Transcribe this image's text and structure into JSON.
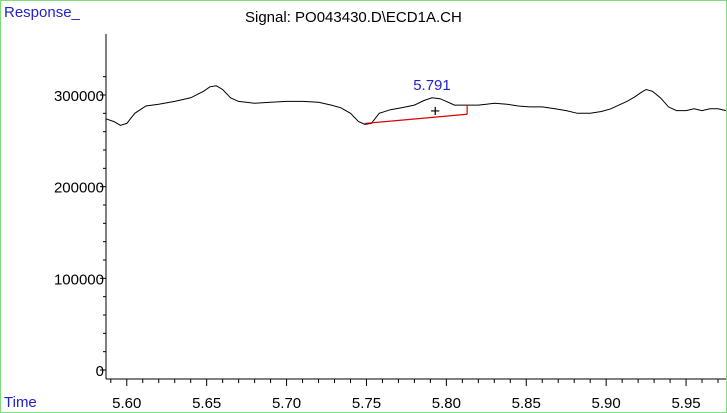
{
  "chart_data": {
    "type": "line",
    "title": "Signal: PO043430.D\\ECD1A.CH",
    "ylabel": "Response_",
    "xlabel": "Time",
    "xlim": [
      5.587,
      5.975
    ],
    "ylim": [
      -6000,
      320000
    ],
    "x_ticks": [
      5.6,
      5.65,
      5.7,
      5.75,
      5.8,
      5.85,
      5.9,
      5.95
    ],
    "x_tick_labels": [
      "5.60",
      "5.65",
      "5.70",
      "5.75",
      "5.80",
      "5.85",
      "5.90",
      "5.95"
    ],
    "x_minor_step": 0.01,
    "y_ticks": [
      0,
      100000,
      200000,
      300000
    ],
    "y_tick_labels": [
      "0",
      "100000",
      "200000",
      "300000"
    ],
    "y_minor_step": 20000,
    "grid": false,
    "series": [
      {
        "color": "#000000",
        "points": [
          [
            5.587,
            274000
          ],
          [
            5.592,
            271000
          ],
          [
            5.596,
            267000
          ],
          [
            5.6,
            269000
          ],
          [
            5.605,
            280000
          ],
          [
            5.612,
            288000
          ],
          [
            5.62,
            290000
          ],
          [
            5.63,
            293000
          ],
          [
            5.64,
            297000
          ],
          [
            5.648,
            304000
          ],
          [
            5.652,
            309000
          ],
          [
            5.656,
            310000
          ],
          [
            5.66,
            306000
          ],
          [
            5.665,
            297000
          ],
          [
            5.67,
            293000
          ],
          [
            5.68,
            291000
          ],
          [
            5.69,
            292000
          ],
          [
            5.7,
            293000
          ],
          [
            5.71,
            293000
          ],
          [
            5.72,
            292000
          ],
          [
            5.728,
            289000
          ],
          [
            5.734,
            286000
          ],
          [
            5.74,
            280000
          ],
          [
            5.745,
            271000
          ],
          [
            5.749,
            268000
          ],
          [
            5.753,
            269000
          ],
          [
            5.758,
            280000
          ],
          [
            5.765,
            284000
          ],
          [
            5.772,
            286000
          ],
          [
            5.78,
            289000
          ],
          [
            5.786,
            294000
          ],
          [
            5.791,
            297000
          ],
          [
            5.796,
            296000
          ],
          [
            5.8,
            293000
          ],
          [
            5.805,
            289000
          ],
          [
            5.81,
            289000
          ],
          [
            5.815,
            289000
          ],
          [
            5.82,
            289000
          ],
          [
            5.825,
            290000
          ],
          [
            5.83,
            291000
          ],
          [
            5.838,
            290000
          ],
          [
            5.845,
            288000
          ],
          [
            5.852,
            287000
          ],
          [
            5.86,
            287000
          ],
          [
            5.868,
            285000
          ],
          [
            5.875,
            283000
          ],
          [
            5.882,
            280000
          ],
          [
            5.89,
            280000
          ],
          [
            5.897,
            282000
          ],
          [
            5.903,
            285000
          ],
          [
            5.908,
            289000
          ],
          [
            5.913,
            293000
          ],
          [
            5.918,
            298000
          ],
          [
            5.922,
            303000
          ],
          [
            5.925,
            306000
          ],
          [
            5.929,
            304000
          ],
          [
            5.934,
            297000
          ],
          [
            5.939,
            287000
          ],
          [
            5.944,
            283000
          ],
          [
            5.95,
            283000
          ],
          [
            5.955,
            285000
          ],
          [
            5.96,
            283000
          ],
          [
            5.965,
            285000
          ],
          [
            5.97,
            285000
          ],
          [
            5.975,
            283000
          ]
        ]
      }
    ],
    "baseline": {
      "color": "#dd0000",
      "from": [
        5.749,
        269000
      ],
      "to": [
        5.813,
        279000
      ],
      "drop_to": 289000
    },
    "peak_label": {
      "text": "5.791",
      "x": 5.791,
      "y": 297000,
      "color": "#2222cc"
    },
    "marker": {
      "symbol": "+",
      "x": 5.793,
      "y": 283000
    }
  }
}
